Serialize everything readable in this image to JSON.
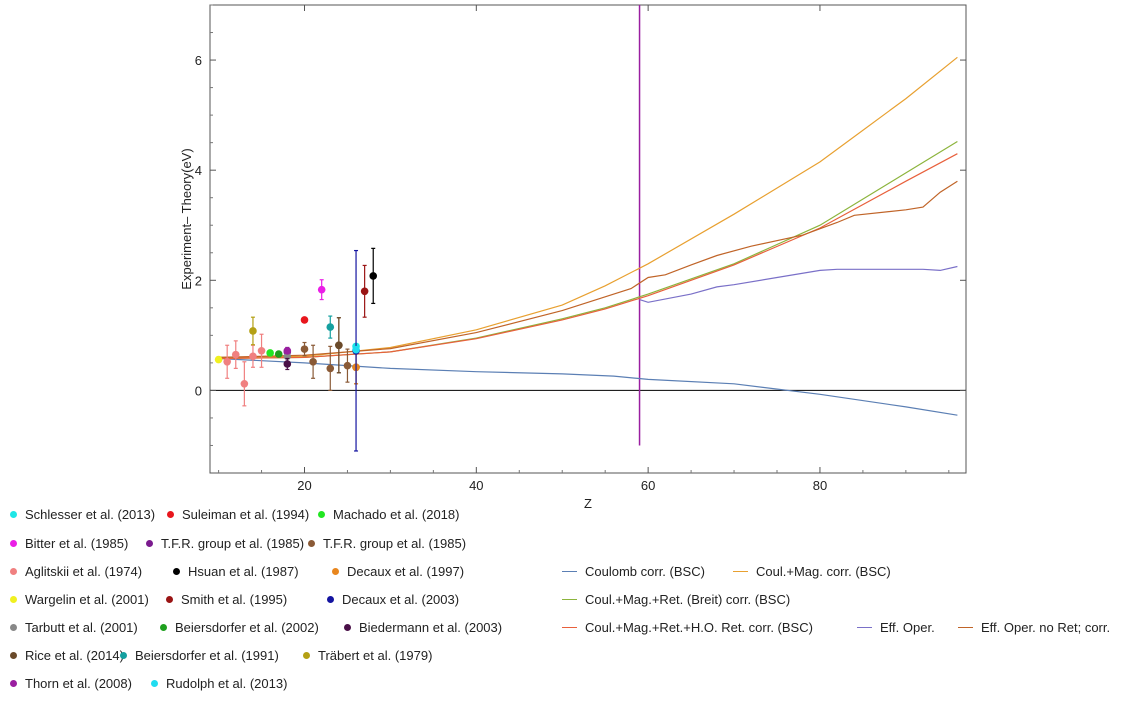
{
  "chart_data": {
    "type": "scatter",
    "xlabel": "Z",
    "ylabel": "Experiment– Theory(eV)",
    "xlim": [
      9,
      97
    ],
    "ylim": [
      -1.5,
      7
    ],
    "xticks": [
      20,
      40,
      60,
      80
    ],
    "yticks": [
      0,
      2,
      4,
      6
    ],
    "vline_x": 59,
    "vline_ylim": [
      -1,
      7
    ],
    "zero_line": true,
    "experiments": [
      {
        "name": "Schlesser et al. (2013)",
        "color": "#1ee6e6",
        "points": [
          {
            "x": 26,
            "y": 0.8,
            "err": 0.05
          }
        ]
      },
      {
        "name": "Suleiman et al. (1994)",
        "color": "#e8161d",
        "points": [
          {
            "x": 20,
            "y": 1.28,
            "err": 0
          }
        ]
      },
      {
        "name": "Machado et al. (2018)",
        "color": "#22e622",
        "points": [
          {
            "x": 16,
            "y": 0.68,
            "err": 0.03
          }
        ]
      },
      {
        "name": "Bitter et al. (1985)",
        "color": "#ea1ee6",
        "points": [
          {
            "x": 22,
            "y": 1.83,
            "err": 0.18
          }
        ]
      },
      {
        "name": "T.F.R. group et al. (1985)",
        "color": "#7a1a8e",
        "points": [
          {
            "x": 18,
            "y": 0.7,
            "err": 0.08
          }
        ]
      },
      {
        "name": "T.F.R. group et al. (1985)",
        "color": "#8a5a36",
        "points": [
          {
            "x": 20,
            "y": 0.75,
            "err": 0.12
          },
          {
            "x": 21,
            "y": 0.52,
            "err": 0.3
          },
          {
            "x": 23,
            "y": 0.4,
            "err": 0.4
          },
          {
            "x": 24,
            "y": 0.82,
            "err": 0.5
          },
          {
            "x": 25,
            "y": 0.45,
            "err": 0.3
          },
          {
            "x": 26,
            "y": 0.42,
            "err": 0.3
          }
        ]
      },
      {
        "name": "Aglitskii et al. (1974)",
        "color": "#f08080",
        "points": [
          {
            "x": 11,
            "y": 0.52,
            "err": 0.3
          },
          {
            "x": 12,
            "y": 0.65,
            "err": 0.25
          },
          {
            "x": 13,
            "y": 0.12,
            "err": 0.4
          },
          {
            "x": 14,
            "y": 0.62,
            "err": 0.2
          },
          {
            "x": 15,
            "y": 0.72,
            "err": 0.3
          }
        ]
      },
      {
        "name": "Hsuan et al. (1987)",
        "color": "#000000",
        "points": [
          {
            "x": 28,
            "y": 2.08,
            "err": 0.5
          }
        ]
      },
      {
        "name": "Decaux et al. (1997)",
        "color": "#e8861e",
        "points": [
          {
            "x": 26,
            "y": 0.42,
            "err": 0.3
          }
        ]
      },
      {
        "name": "Wargelin et al. (2001)",
        "color": "#f0f020",
        "points": [
          {
            "x": 10,
            "y": 0.56,
            "err": 0.05
          }
        ]
      },
      {
        "name": "Smith et al. (1995)",
        "color": "#9a1414",
        "points": [
          {
            "x": 27,
            "y": 1.8,
            "err": 0.47
          }
        ]
      },
      {
        "name": "Decaux et al. (2003)",
        "color": "#1414a0",
        "points": [
          {
            "x": 26,
            "y": 0.72,
            "err": 1.82
          }
        ]
      },
      {
        "name": "Tarbutt et al. (2001)",
        "color": "#888888",
        "points": [
          {
            "x": 18,
            "y": 0.62,
            "err": 0.1
          }
        ]
      },
      {
        "name": "Beiersdorfer et al. (2002)",
        "color": "#1ea01e",
        "points": [
          {
            "x": 17,
            "y": 0.66,
            "err": 0.04
          }
        ]
      },
      {
        "name": "Biedermann et al. (2003)",
        "color": "#4a1048",
        "points": [
          {
            "x": 18,
            "y": 0.48,
            "err": 0.1
          }
        ]
      },
      {
        "name": "Rice et al. (2014)",
        "color": "#6a4a2a",
        "points": [
          {
            "x": 24,
            "y": 0.82,
            "err": 0.5
          }
        ]
      },
      {
        "name": "Beiersdorfer et al. (1991)",
        "color": "#14a0a0",
        "points": [
          {
            "x": 23,
            "y": 1.15,
            "err": 0.2
          }
        ]
      },
      {
        "name": "Träbert et al. (1979)",
        "color": "#b4a014",
        "points": [
          {
            "x": 14,
            "y": 1.08,
            "err": 0.25
          }
        ]
      },
      {
        "name": "Thorn et al. (2008)",
        "color": "#9a1ea0",
        "points": [
          {
            "x": 18,
            "y": 0.72,
            "err": 0.05
          }
        ]
      },
      {
        "name": "Rudolph et al. (2013)",
        "color": "#20dcf0",
        "points": [
          {
            "x": 26,
            "y": 0.74,
            "err": 0.04
          }
        ]
      }
    ],
    "theory": [
      {
        "name": "Coulomb corr. (BSC)",
        "color": "#5b7fb4",
        "x": [
          10,
          20,
          30,
          40,
          50,
          56,
          60,
          70,
          80,
          90,
          96
        ],
        "y": [
          0.58,
          0.5,
          0.4,
          0.34,
          0.3,
          0.26,
          0.2,
          0.12,
          -0.07,
          -0.3,
          -0.45
        ]
      },
      {
        "name": "Coul.+Mag. corr. (BSC)",
        "color": "#e8a030",
        "x": [
          10,
          20,
          30,
          40,
          50,
          55,
          60,
          70,
          80,
          90,
          96
        ],
        "y": [
          0.6,
          0.62,
          0.78,
          1.1,
          1.55,
          1.9,
          2.3,
          3.2,
          4.15,
          5.3,
          6.05
        ]
      },
      {
        "name": "Coul.+Mag.+Ret. (Breit) corr. (BSC)",
        "color": "#8cb43c",
        "x": [
          10,
          20,
          30,
          40,
          50,
          55,
          60,
          70,
          80,
          90,
          96
        ],
        "y": [
          0.58,
          0.6,
          0.7,
          0.95,
          1.3,
          1.5,
          1.75,
          2.3,
          3.0,
          3.95,
          4.52
        ]
      },
      {
        "name": "Coul.+Mag.+Ret.+H.O. Ret. corr. (BSC)",
        "color": "#e8603c",
        "x": [
          10,
          20,
          30,
          40,
          50,
          55,
          60,
          70,
          80,
          90,
          96
        ],
        "y": [
          0.58,
          0.6,
          0.7,
          0.94,
          1.28,
          1.48,
          1.72,
          2.28,
          2.95,
          3.8,
          4.3
        ]
      },
      {
        "name": "Eff. Oper.",
        "color": "#7a70c8",
        "x": [
          59,
          60,
          65,
          68,
          70,
          75,
          80,
          82,
          85,
          90,
          92,
          94,
          96
        ],
        "y": [
          1.65,
          1.6,
          1.75,
          1.88,
          1.92,
          2.05,
          2.18,
          2.2,
          2.2,
          2.2,
          2.2,
          2.18,
          2.25
        ]
      },
      {
        "name": "Eff. Oper. no Ret; corr.",
        "color": "#c06428",
        "x": [
          10,
          20,
          30,
          40,
          50,
          55,
          58,
          60,
          62,
          65,
          68,
          72,
          78,
          82,
          84,
          90,
          92,
          94,
          96
        ],
        "y": [
          0.6,
          0.64,
          0.76,
          1.05,
          1.45,
          1.7,
          1.85,
          2.05,
          2.1,
          2.28,
          2.45,
          2.62,
          2.82,
          3.05,
          3.18,
          3.28,
          3.33,
          3.6,
          3.8
        ]
      }
    ]
  }
}
